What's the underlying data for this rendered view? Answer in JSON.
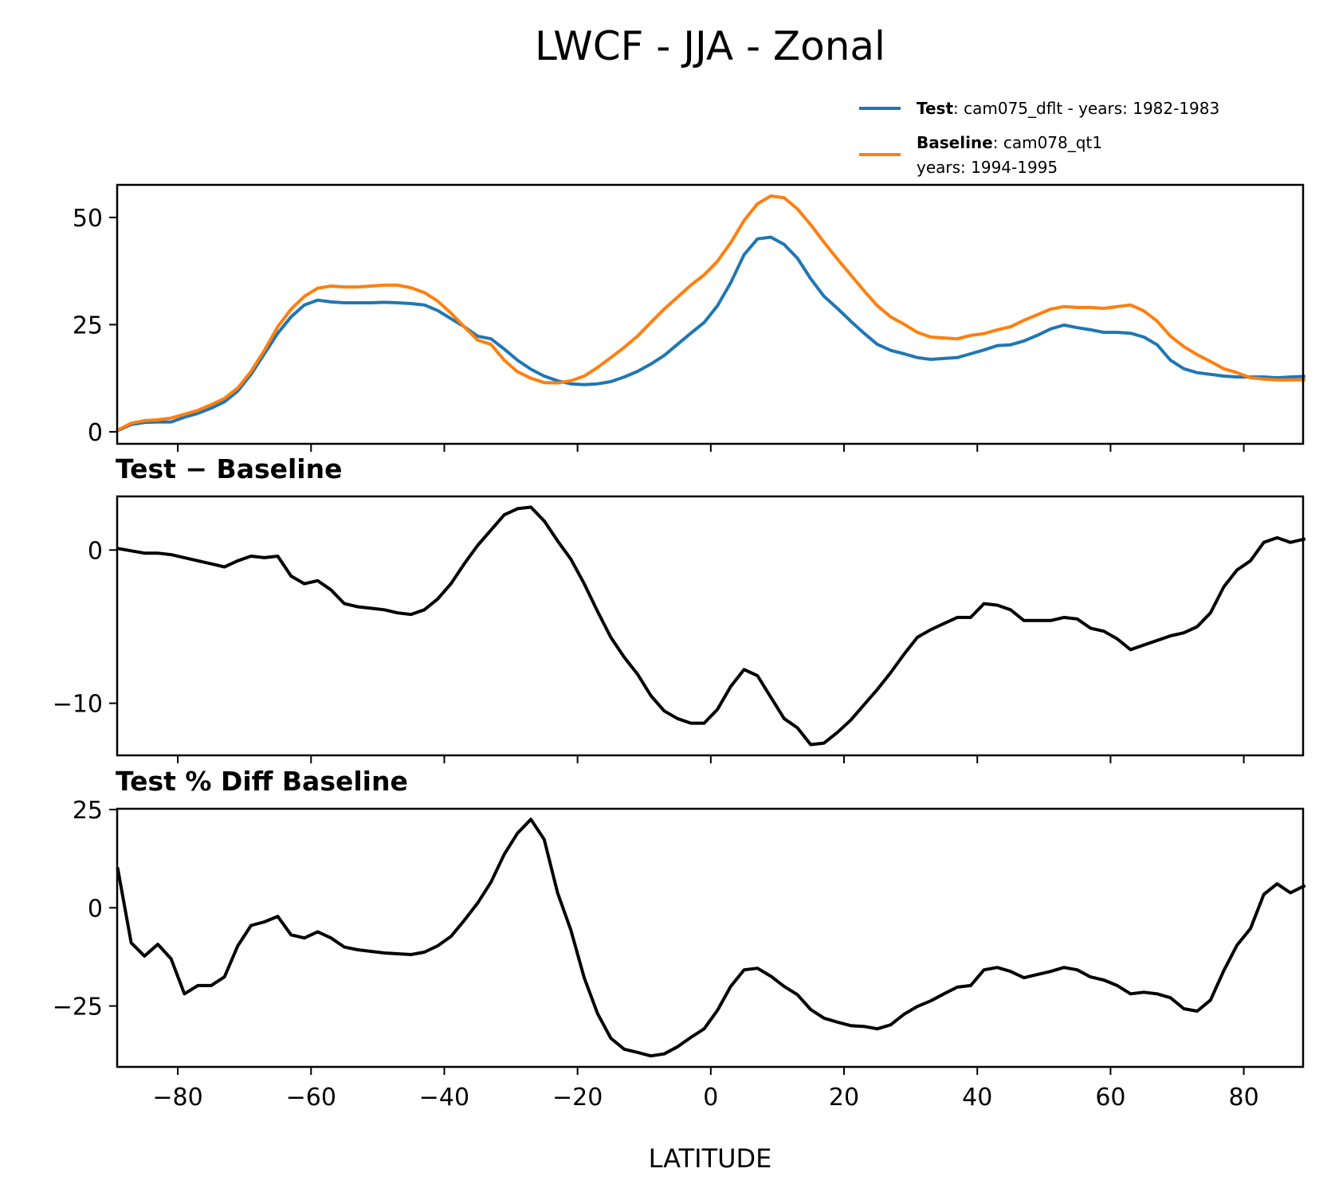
{
  "chart_data": {
    "type": "line",
    "title": "LWCF - JJA - Zonal",
    "xlabel": "LATITUDE",
    "xlim": [
      -89.1,
      88.9
    ],
    "xticks": [
      -80,
      -60,
      -40,
      -20,
      0,
      20,
      40,
      60,
      80
    ],
    "xtick_labels": [
      "−80",
      "−60",
      "−40",
      "−20",
      "0",
      "20",
      "40",
      "60",
      "80"
    ],
    "x": [
      -89,
      -87,
      -85,
      -83,
      -81,
      -79,
      -77,
      -75,
      -73,
      -71,
      -69,
      -67,
      -65,
      -63,
      -61,
      -59,
      -57,
      -55,
      -53,
      -51,
      -49,
      -47,
      -45,
      -43,
      -41,
      -39,
      -37,
      -35,
      -33,
      -31,
      -29,
      -27,
      -25,
      -23,
      -21,
      -19,
      -17,
      -15,
      -13,
      -11,
      -9,
      -7,
      -5,
      -3,
      -1,
      1,
      3,
      5,
      7,
      9,
      11,
      13,
      15,
      17,
      19,
      21,
      23,
      25,
      27,
      29,
      31,
      33,
      35,
      37,
      39,
      41,
      43,
      45,
      47,
      49,
      51,
      53,
      55,
      57,
      59,
      61,
      63,
      65,
      67,
      69,
      71,
      73,
      75,
      77,
      79,
      81,
      83,
      85,
      87,
      89
    ],
    "panels": [
      {
        "name": "zonal-mean",
        "title": "",
        "ylim": [
          -2.8,
          57.6
        ],
        "yticks": [
          0,
          25,
          50
        ],
        "ytick_labels": [
          "0",
          "25",
          "50"
        ],
        "legend": {
          "placement": "top-right-outside",
          "entries": [
            {
              "bold": "Test",
              "text": ": cam075_dflt - years: 1982-1983",
              "text2": "",
              "color": "#1f77b4"
            },
            {
              "bold": "Baseline",
              "text": ": cam078_qt1",
              "text2": "years: 1994-1995",
              "color": "#ff7f0e"
            }
          ]
        },
        "series": [
          {
            "name": "Test",
            "color": "#1f77b4",
            "values": [
              0.3,
              1.7,
              2.2,
              2.3,
              2.3,
              3.4,
              4.3,
              5.5,
              7.0,
              9.5,
              13.4,
              18.2,
              23.0,
              26.8,
              29.6,
              30.7,
              30.3,
              30.1,
              30.1,
              30.1,
              30.2,
              30.1,
              29.9,
              29.6,
              28.3,
              26.4,
              24.5,
              22.3,
              21.7,
              19.3,
              16.7,
              14.6,
              13.0,
              11.9,
              11.2,
              11.0,
              11.2,
              11.7,
              12.8,
              14.1,
              15.8,
              17.8,
              20.4,
              23.0,
              25.5,
              29.4,
              34.8,
              41.3,
              45.0,
              45.4,
              43.7,
              40.5,
              35.7,
              31.6,
              28.8,
              25.8,
              23.0,
              20.4,
              19.0,
              18.2,
              17.3,
              16.9,
              17.1,
              17.3,
              18.2,
              19.1,
              20.1,
              20.3,
              21.2,
              22.5,
              24.0,
              24.9,
              24.3,
              23.8,
              23.2,
              23.2,
              23.0,
              22.1,
              20.3,
              16.7,
              14.7,
              13.8,
              13.4,
              13.0,
              12.8,
              12.8,
              12.8,
              12.6,
              12.8,
              12.9
            ]
          },
          {
            "name": "Baseline",
            "color": "#ff7f0e",
            "values": [
              0.4,
              2.0,
              2.6,
              2.8,
              3.2,
              4.1,
              5.0,
              6.3,
              7.8,
              10.2,
              14.1,
              19.0,
              24.5,
              28.6,
              31.6,
              33.5,
              34.0,
              33.8,
              33.8,
              34.0,
              34.2,
              34.2,
              33.6,
              32.5,
              30.5,
              27.7,
              24.5,
              21.4,
              20.4,
              16.7,
              14.0,
              12.5,
              11.5,
              11.4,
              11.9,
              13.0,
              15.0,
              17.3,
              19.7,
              22.3,
              25.5,
              28.6,
              31.4,
              34.2,
              36.6,
              39.8,
              44.1,
              49.3,
              53.2,
              55.0,
              54.6,
              52.0,
              48.3,
              44.2,
              40.3,
              36.6,
              32.9,
              29.4,
              26.8,
              25.1,
              23.2,
              22.1,
              21.9,
              21.7,
              22.5,
              22.9,
              23.8,
              24.5,
              26.0,
              27.3,
              28.6,
              29.2,
              29.0,
              29.0,
              28.8,
              29.2,
              29.6,
              28.2,
              25.8,
              22.3,
              19.9,
              18.0,
              16.4,
              14.7,
              13.8,
              12.6,
              12.3,
              12.1,
              12.1,
              12.1
            ]
          }
        ]
      },
      {
        "name": "difference",
        "title": "Test − Baseline",
        "ylim": [
          -13.4,
          3.5
        ],
        "yticks": [
          -10,
          0
        ],
        "ytick_labels": [
          "−10",
          "0"
        ],
        "series": [
          {
            "name": "Test - Baseline",
            "color": "#000000",
            "values": [
              0.1,
              -0.05,
              -0.2,
              -0.2,
              -0.3,
              -0.5,
              -0.7,
              -0.9,
              -1.1,
              -0.7,
              -0.4,
              -0.5,
              -0.4,
              -1.7,
              -2.2,
              -2.0,
              -2.6,
              -3.5,
              -3.7,
              -3.8,
              -3.9,
              -4.1,
              -4.2,
              -3.9,
              -3.2,
              -2.2,
              -0.9,
              0.3,
              1.3,
              2.3,
              2.7,
              2.8,
              1.9,
              0.6,
              -0.6,
              -2.2,
              -4.0,
              -5.7,
              -7.0,
              -8.1,
              -9.5,
              -10.5,
              -11.0,
              -11.3,
              -11.3,
              -10.4,
              -8.9,
              -7.8,
              -8.2,
              -9.6,
              -11.0,
              -11.6,
              -12.7,
              -12.6,
              -11.9,
              -11.1,
              -10.1,
              -9.1,
              -8.0,
              -6.8,
              -5.7,
              -5.2,
              -4.8,
              -4.4,
              -4.4,
              -3.5,
              -3.6,
              -3.9,
              -4.6,
              -4.6,
              -4.6,
              -4.4,
              -4.5,
              -5.1,
              -5.3,
              -5.8,
              -6.5,
              -6.2,
              -5.9,
              -5.6,
              -5.4,
              -5.0,
              -4.1,
              -2.4,
              -1.3,
              -0.7,
              0.5,
              0.8,
              0.5,
              0.7
            ]
          }
        ]
      },
      {
        "name": "percent-difference",
        "title": "Test % Diff Baseline",
        "ylim": [
          -40.5,
          25.2
        ],
        "yticks": [
          -25,
          0,
          25
        ],
        "ytick_labels": [
          "−25",
          "0",
          "25"
        ],
        "series": [
          {
            "name": "Test % Diff Baseline",
            "color": "#000000",
            "values": [
              9.9,
              -8.9,
              -12.3,
              -9.3,
              -13.0,
              -21.9,
              -19.8,
              -19.8,
              -17.6,
              -9.7,
              -4.5,
              -3.6,
              -2.2,
              -6.9,
              -7.7,
              -6.1,
              -7.7,
              -10.0,
              -10.7,
              -11.1,
              -11.5,
              -11.7,
              -11.9,
              -11.3,
              -9.7,
              -7.3,
              -3.2,
              1.2,
              6.5,
              13.6,
              19.0,
              22.5,
              17.4,
              3.8,
              -5.7,
              -17.8,
              -26.9,
              -33.2,
              -36.0,
              -36.8,
              -37.7,
              -37.2,
              -35.4,
              -33.0,
              -30.8,
              -26.1,
              -20.0,
              -15.8,
              -15.4,
              -17.4,
              -20.0,
              -22.1,
              -25.9,
              -28.1,
              -29.1,
              -30.0,
              -30.2,
              -30.8,
              -29.8,
              -27.1,
              -25.1,
              -23.7,
              -21.9,
              -20.2,
              -19.8,
              -15.8,
              -15.2,
              -16.2,
              -17.8,
              -17.0,
              -16.2,
              -15.2,
              -15.8,
              -17.6,
              -18.4,
              -19.8,
              -21.9,
              -21.5,
              -21.9,
              -22.9,
              -25.7,
              -26.3,
              -23.5,
              -16.0,
              -9.5,
              -5.3,
              3.4,
              6.1,
              3.8,
              5.5
            ]
          }
        ]
      }
    ]
  }
}
